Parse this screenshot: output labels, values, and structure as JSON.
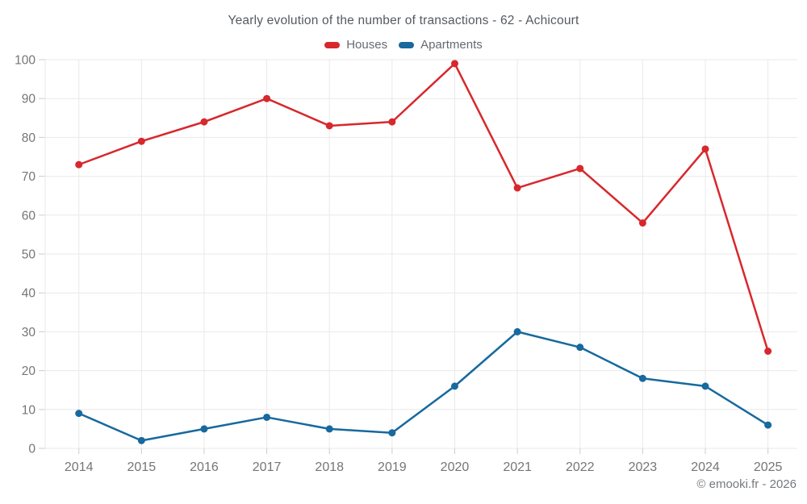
{
  "header": {
    "title": "Yearly evolution of the number of transactions - 62 - Achicourt"
  },
  "legend": [
    {
      "label": "Houses",
      "color": "#d7282d"
    },
    {
      "label": "Apartments",
      "color": "#17699e"
    }
  ],
  "footer": {
    "credit": "© emooki.fr - 2026"
  },
  "colors": {
    "houses": "#d7282d",
    "apartments": "#17699e",
    "grid": "#e9e9e9",
    "tick": "#cccccc",
    "axis_label": "#757575"
  },
  "chart_data": {
    "type": "line",
    "title": "Yearly evolution of the number of transactions - 62 - Achicourt",
    "categories": [
      "2014",
      "2015",
      "2016",
      "2017",
      "2018",
      "2019",
      "2020",
      "2021",
      "2022",
      "2023",
      "2024",
      "2025"
    ],
    "series": [
      {
        "name": "Houses",
        "color": "#d7282d",
        "values": [
          73,
          79,
          84,
          90,
          83,
          84,
          99,
          67,
          72,
          58,
          77,
          25
        ]
      },
      {
        "name": "Apartments",
        "color": "#17699e",
        "values": [
          9,
          2,
          5,
          8,
          5,
          4,
          16,
          30,
          26,
          18,
          16,
          6
        ]
      }
    ],
    "xlabel": "",
    "ylabel": "",
    "ylim": [
      0,
      100
    ],
    "ytick_step": 10,
    "grid": true,
    "legend_position": "top"
  }
}
